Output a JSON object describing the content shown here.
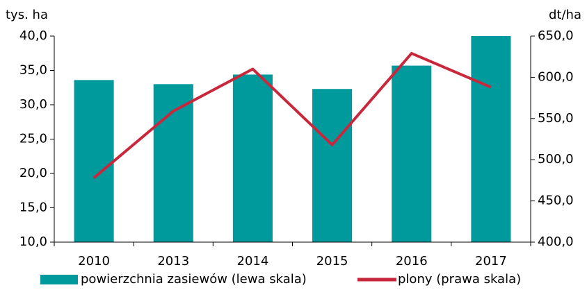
{
  "chart_data": {
    "type": "bar",
    "y_label": "tys. ha",
    "y2_label": "dt/ha",
    "categories": [
      "2010",
      "2013",
      "2014",
      "2015",
      "2016",
      "2017"
    ],
    "series": [
      {
        "name": "powierzchnia zasiewów (lewa skala)",
        "type": "bar",
        "color": "#00999c",
        "values": [
          33.6,
          33.0,
          34.4,
          32.3,
          35.7,
          40.0
        ]
      },
      {
        "name": "plony (prawa skala)",
        "type": "line",
        "axis": "y2",
        "color": "#c8283c",
        "values": [
          478,
          559,
          610,
          518,
          629,
          588
        ]
      }
    ],
    "ylim": [
      10,
      40
    ],
    "yticks": [
      {
        "value": 10,
        "label": "10,0"
      },
      {
        "value": 15,
        "label": "15,0"
      },
      {
        "value": 20,
        "label": "20,0"
      },
      {
        "value": 25,
        "label": "25,0"
      },
      {
        "value": 30,
        "label": "30,0"
      },
      {
        "value": 35,
        "label": "35,0"
      },
      {
        "value": 40,
        "label": "40,0"
      }
    ],
    "y2lim": [
      400,
      650
    ],
    "y2ticks": [
      {
        "value": 400,
        "label": "400,0"
      },
      {
        "value": 450,
        "label": "450,0"
      },
      {
        "value": 500,
        "label": "500,0"
      },
      {
        "value": 550,
        "label": "550,0"
      },
      {
        "value": 600,
        "label": "600,0"
      },
      {
        "value": 650,
        "label": "650,0"
      }
    ],
    "grid": false,
    "legend": "bottom"
  }
}
